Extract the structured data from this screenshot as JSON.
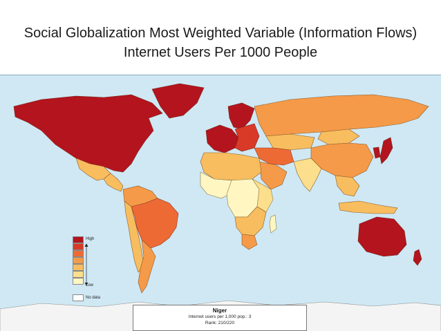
{
  "slide": {
    "title": "Social Globalization Most Weighted Variable (Information Flows) Internet Users Per 1000 People"
  },
  "legend": {
    "high_label": "High",
    "low_label": "Low",
    "no_data_label": "No data",
    "scale_colors": [
      "#b3141e",
      "#d93a28",
      "#ee6a35",
      "#f59a48",
      "#f8bd5f",
      "#fcdf8c",
      "#fff6c2"
    ],
    "no_data_color": "#ffffff"
  },
  "info_box": {
    "country": "Niger",
    "metric_line": "Internet users per 1,000 pop.: 3",
    "rank_line": "Rank: 210/220"
  },
  "map": {
    "ocean_color": "#cfe8f4",
    "region_levels": {
      "north_america": 0,
      "greenland": 0,
      "mexico": 4,
      "central_america": 4,
      "south_america_north": 3,
      "brazil": 2,
      "argentina": 3,
      "andes": 4,
      "europe_west": 0,
      "scandinavia": 0,
      "europe_east": 1,
      "russia": 3,
      "kazakhstan": 4,
      "middle_east": 2,
      "arabia": 3,
      "north_africa": 4,
      "west_africa": 6,
      "central_africa": 6,
      "east_africa": 5,
      "southern_africa": 4,
      "south_africa": 3,
      "india": 5,
      "china": 3,
      "mongolia": 4,
      "southeast_asia": 4,
      "japan": 0,
      "korea": 0,
      "indonesia": 4,
      "australia": 0,
      "new_zealand": 0,
      "madagascar": 6,
      "antarctica": -1
    }
  }
}
